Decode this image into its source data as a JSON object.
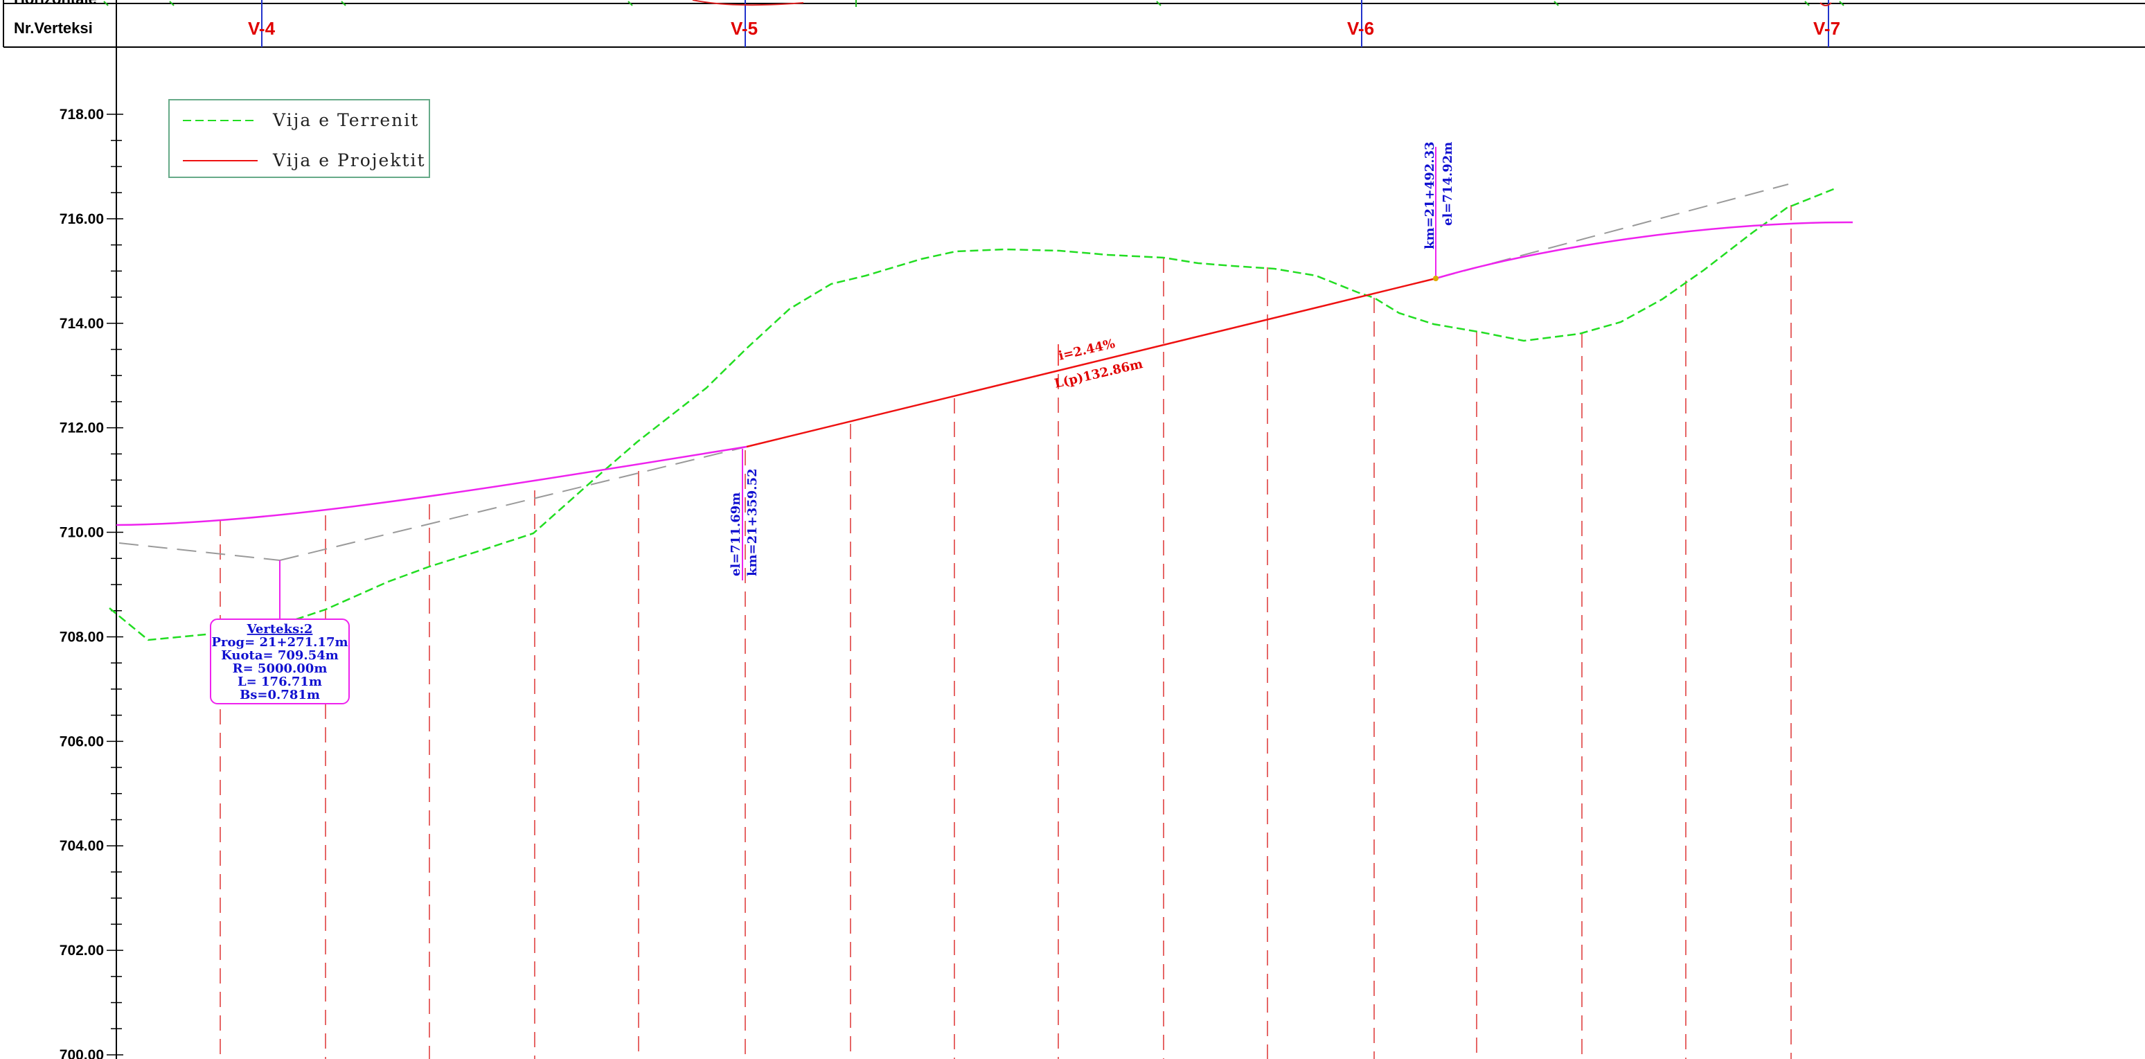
{
  "header": {
    "row_top_label": "Horizontale",
    "row_label": "Nr.Verteksi",
    "vertices": [
      "V-4",
      "V-5",
      "V-6",
      "V-7"
    ]
  },
  "legend": {
    "terrain": "Vija e Terrenit",
    "project": "Vija e Projektit"
  },
  "colors": {
    "terrain": "#22dd22",
    "project": "#ee1111",
    "curve": "#ee22ee",
    "tangent": "#999999",
    "station": "#dd3333",
    "vertex_label": "#e00000",
    "annotation": "#1010d0"
  },
  "chart_data": {
    "type": "line",
    "ylim": [
      700,
      718
    ],
    "y_ticks": [
      "718.00",
      "716.00",
      "714.00",
      "712.00",
      "710.00",
      "708.00",
      "706.00",
      "704.00",
      "702.00",
      "700.00"
    ]
  },
  "annotations": {
    "grade": "i=2.44%",
    "length": "L(p)132.86m",
    "v5_el": "el=711.69m",
    "v5_km": "km=21+359.52",
    "v6_km": "km=21+492.33",
    "v6_el": "el=714.92m"
  },
  "vertex_box": {
    "title": "Verteks:2",
    "prog": "Prog=  21+271.17m",
    "kuota": "Kuota=  709.54m",
    "r": "R=  5000.00m",
    "l": "L=  176.71m",
    "bs": "Bs=0.781m"
  }
}
